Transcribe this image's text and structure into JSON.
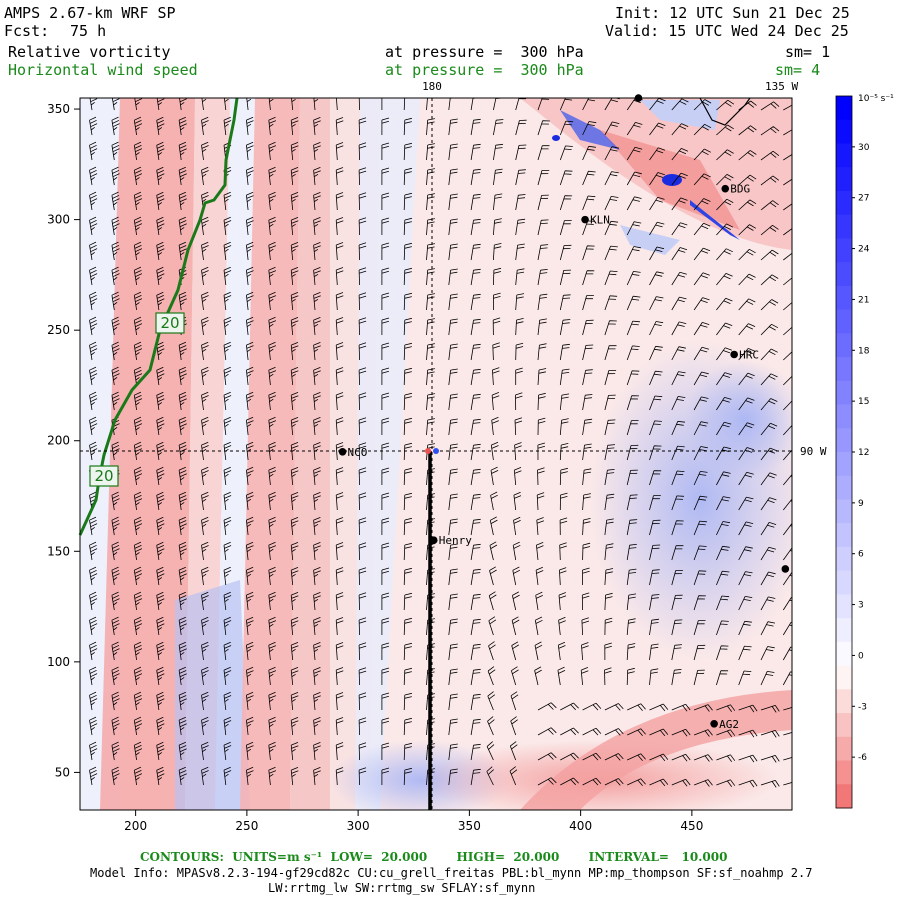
{
  "header": {
    "title": "AMPS 2.67-km WRF SP",
    "forecast_label": "Fcst:",
    "forecast_hours": "75 h",
    "init": "Init: 12 UTC Sun 21 Dec 25",
    "valid": "Valid: 15 UTC Wed 24 Dec 25",
    "field1": "Relative vorticity",
    "field1_level": "at pressure =  300 hPa",
    "field1_sm": "sm= 1",
    "field2": "Horizontal wind speed",
    "field2_level": "at pressure =  300 hPa",
    "field2_sm": "sm= 4"
  },
  "map": {
    "x_ticks": [
      "200",
      "250",
      "300",
      "350",
      "400",
      "450"
    ],
    "y_ticks": [
      "50",
      "100",
      "150",
      "200",
      "250",
      "300",
      "350"
    ],
    "meridian_top_label": "180",
    "meridian_top_label2": "135 W",
    "parallel_right_label": "90 W",
    "contour_labels": [
      "20",
      "20"
    ],
    "stations": [
      {
        "name": "NCO",
        "x": 293,
        "y": 195
      },
      {
        "name": "Henry",
        "x": 334,
        "y": 155
      },
      {
        "name": "KLN",
        "x": 402,
        "y": 300
      },
      {
        "name": "BDG",
        "x": 465,
        "y": 314
      },
      {
        "name": "HRC",
        "x": 469,
        "y": 239
      },
      {
        "name": "AG2",
        "x": 460,
        "y": 72
      },
      {
        "name": "",
        "x": 492,
        "y": 142
      },
      {
        "name": "",
        "x": 426,
        "y": 355
      }
    ]
  },
  "colorbar": {
    "unit": "10⁻⁵ s⁻¹",
    "labels": [
      "30",
      "27",
      "24",
      "21",
      "18",
      "15",
      "12",
      "9",
      "6",
      "3",
      "0",
      "-3",
      "-6"
    ],
    "colors": {
      "strong_positive": "#0000ff",
      "neutral": "#ffffff",
      "strong_negative": "#f06060"
    }
  },
  "footer": {
    "contours": "CONTOURS:  UNITS=m s⁻¹  LOW=  20.000       HIGH=  20.000       INTERVAL=   10.000",
    "model_info": "Model Info: MPASv8.2.3-194-gf29cd82c CU:cu_grell_freitas PBL:bl_mynn MP:mp_thompson SF:sf_noahmp 2.7",
    "model_info2": "LW:rrtmg_lw SW:rrtmg_sw SFLAY:sf_mynn"
  }
}
